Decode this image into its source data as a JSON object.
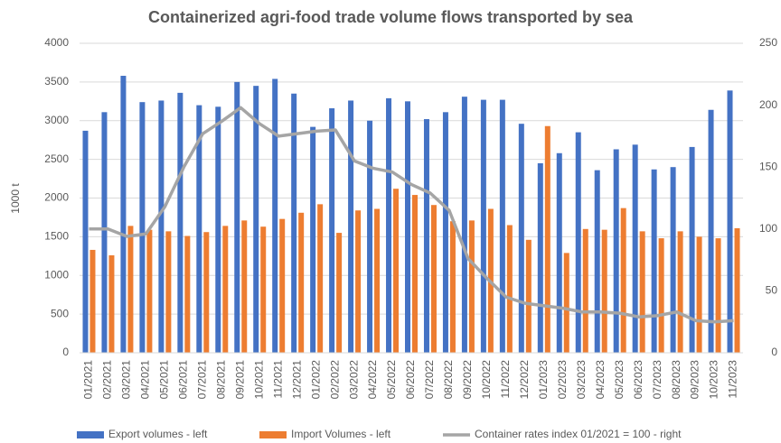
{
  "chart_data": {
    "type": "bar_line",
    "title": "Containerized agri-food trade volume flows transported by sea",
    "ylabel": "1000 t",
    "categories": [
      "01/2021",
      "02/2021",
      "03/2021",
      "04/2021",
      "05/2021",
      "06/2021",
      "07/2021",
      "08/2021",
      "09/2021",
      "10/2021",
      "11/2021",
      "12/2021",
      "01/2022",
      "02/2022",
      "03/2022",
      "04/2022",
      "05/2022",
      "06/2022",
      "07/2022",
      "08/2022",
      "09/2022",
      "10/2022",
      "11/2022",
      "12/2022",
      "01/2023",
      "02/2023",
      "03/2023",
      "04/2023",
      "05/2023",
      "06/2023",
      "07/2023",
      "08/2023",
      "09/2023",
      "10/2023",
      "11/2023"
    ],
    "series": [
      {
        "name": "Export volumes - left",
        "color": "#4472c4",
        "kind": "bar",
        "values": [
          2870,
          3110,
          3580,
          3240,
          3260,
          3360,
          3200,
          3180,
          3500,
          3450,
          3540,
          3350,
          2920,
          3160,
          3260,
          3000,
          3290,
          3250,
          3020,
          3110,
          3310,
          3270,
          3270,
          2960,
          2450,
          2580,
          2850,
          2360,
          2630,
          2690,
          2370,
          2400,
          2660,
          3140,
          3390
        ]
      },
      {
        "name": "Import Volumes - left",
        "color": "#ed7d31",
        "kind": "bar",
        "values": [
          1330,
          1260,
          1640,
          1590,
          1570,
          1510,
          1560,
          1640,
          1710,
          1630,
          1730,
          1810,
          1920,
          1550,
          1840,
          1860,
          2120,
          2040,
          1910,
          1700,
          1710,
          1860,
          1650,
          1460,
          2930,
          1290,
          1600,
          1590,
          1870,
          1570,
          1480,
          1570,
          1500,
          1480,
          1610
        ]
      },
      {
        "name": "Container rates index 01/2021 = 100 - right",
        "color": "#a5a5a5",
        "kind": "line",
        "axis": "y2",
        "values": [
          100,
          100,
          94,
          96,
          118,
          150,
          177,
          187,
          198,
          185,
          175,
          177,
          179,
          180,
          155,
          149,
          146,
          136,
          129,
          115,
          76,
          60,
          45,
          40,
          38,
          36,
          33,
          33,
          32,
          29,
          30,
          33,
          26,
          25,
          26
        ]
      }
    ],
    "ylim": [
      0,
      4000
    ],
    "yticks": [
      0,
      500,
      1000,
      1500,
      2000,
      2500,
      3000,
      3500,
      4000
    ],
    "y2lim": [
      0,
      250
    ],
    "y2ticks": [
      0,
      50,
      100,
      150,
      200,
      250
    ],
    "grid": true,
    "legend": "bottom"
  }
}
